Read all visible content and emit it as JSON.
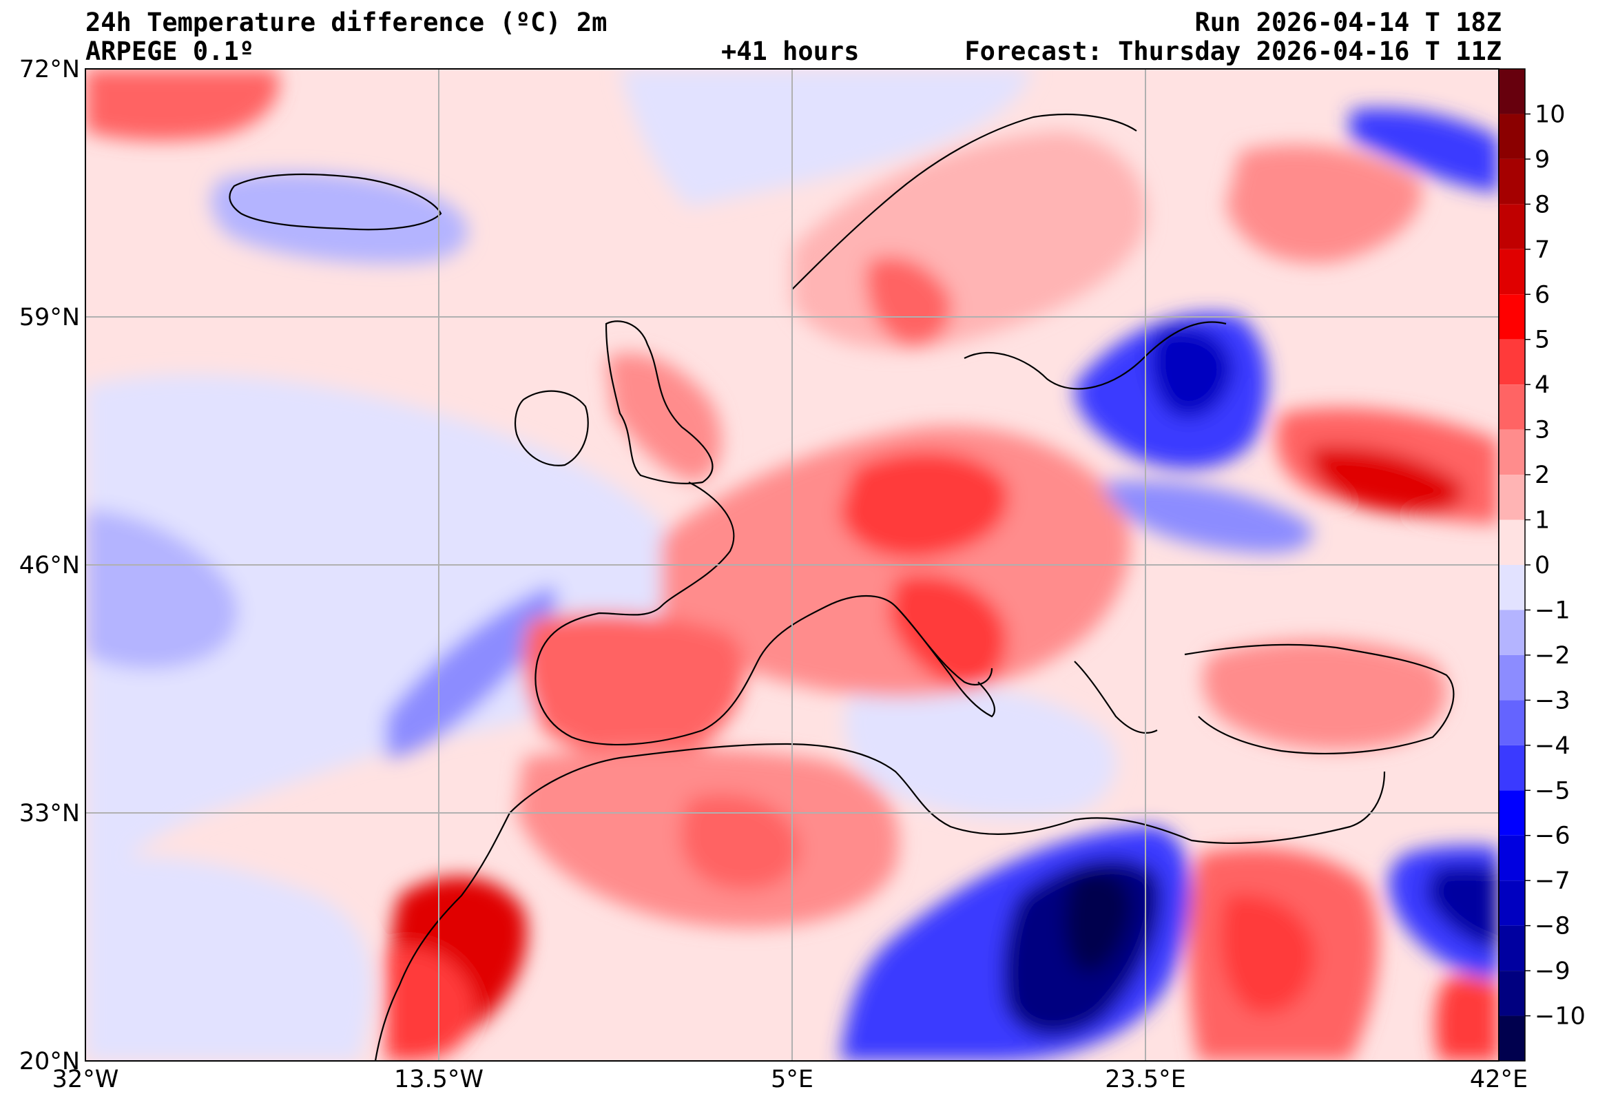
{
  "header": {
    "title": "24h Temperature difference (ºC) 2m",
    "model": "ARPEGE 0.1º",
    "lead_time": "+41 hours",
    "run": "Run 2026-04-14 T 18Z",
    "forecast": "Forecast: Thursday 2026-04-16 T 11Z"
  },
  "map": {
    "lon_range": [
      -32,
      42
    ],
    "lat_range": [
      20,
      72
    ],
    "lat_ticks": [
      {
        "value": 72,
        "label": "72°N"
      },
      {
        "value": 59,
        "label": "59°N"
      },
      {
        "value": 46,
        "label": "46°N"
      },
      {
        "value": 33,
        "label": "33°N"
      },
      {
        "value": 20,
        "label": "20°N"
      }
    ],
    "lon_ticks": [
      {
        "value": -32,
        "label": "32°W"
      },
      {
        "value": -13.5,
        "label": "13.5°W"
      },
      {
        "value": 5,
        "label": "5°E"
      },
      {
        "value": 23.5,
        "label": "23.5°E"
      },
      {
        "value": 42,
        "label": "42°E"
      }
    ],
    "grid": true
  },
  "colorbar": {
    "levels": [
      {
        "value": 11,
        "color": "#67000d"
      },
      {
        "value": 10,
        "color": "#8b0000"
      },
      {
        "value": 9,
        "color": "#a50000"
      },
      {
        "value": 8,
        "color": "#c00000"
      },
      {
        "value": 7,
        "color": "#e00000"
      },
      {
        "value": 6,
        "color": "#ff0000"
      },
      {
        "value": 5,
        "color": "#ff3a3a"
      },
      {
        "value": 4,
        "color": "#ff6464"
      },
      {
        "value": 3,
        "color": "#ff8c8c"
      },
      {
        "value": 2,
        "color": "#ffb4b4"
      },
      {
        "value": 1,
        "color": "#ffe2e2"
      },
      {
        "value": 0,
        "color": "#e2e2ff"
      },
      {
        "value": -1,
        "color": "#b4b4ff"
      },
      {
        "value": -2,
        "color": "#8c8cff"
      },
      {
        "value": -3,
        "color": "#6464ff"
      },
      {
        "value": -4,
        "color": "#3a3aff"
      },
      {
        "value": -5,
        "color": "#0000ff"
      },
      {
        "value": -6,
        "color": "#0000e0"
      },
      {
        "value": -7,
        "color": "#0000c0"
      },
      {
        "value": -8,
        "color": "#0000a0"
      },
      {
        "value": -9,
        "color": "#000080"
      },
      {
        "value": -10,
        "color": "#00004e"
      }
    ],
    "tick_labels": [
      "10",
      "9",
      "8",
      "7",
      "6",
      "5",
      "4",
      "3",
      "2",
      "1",
      "0",
      "−1",
      "−2",
      "−3",
      "−4",
      "−5",
      "−6",
      "−7",
      "−8",
      "−9",
      "−10"
    ]
  }
}
